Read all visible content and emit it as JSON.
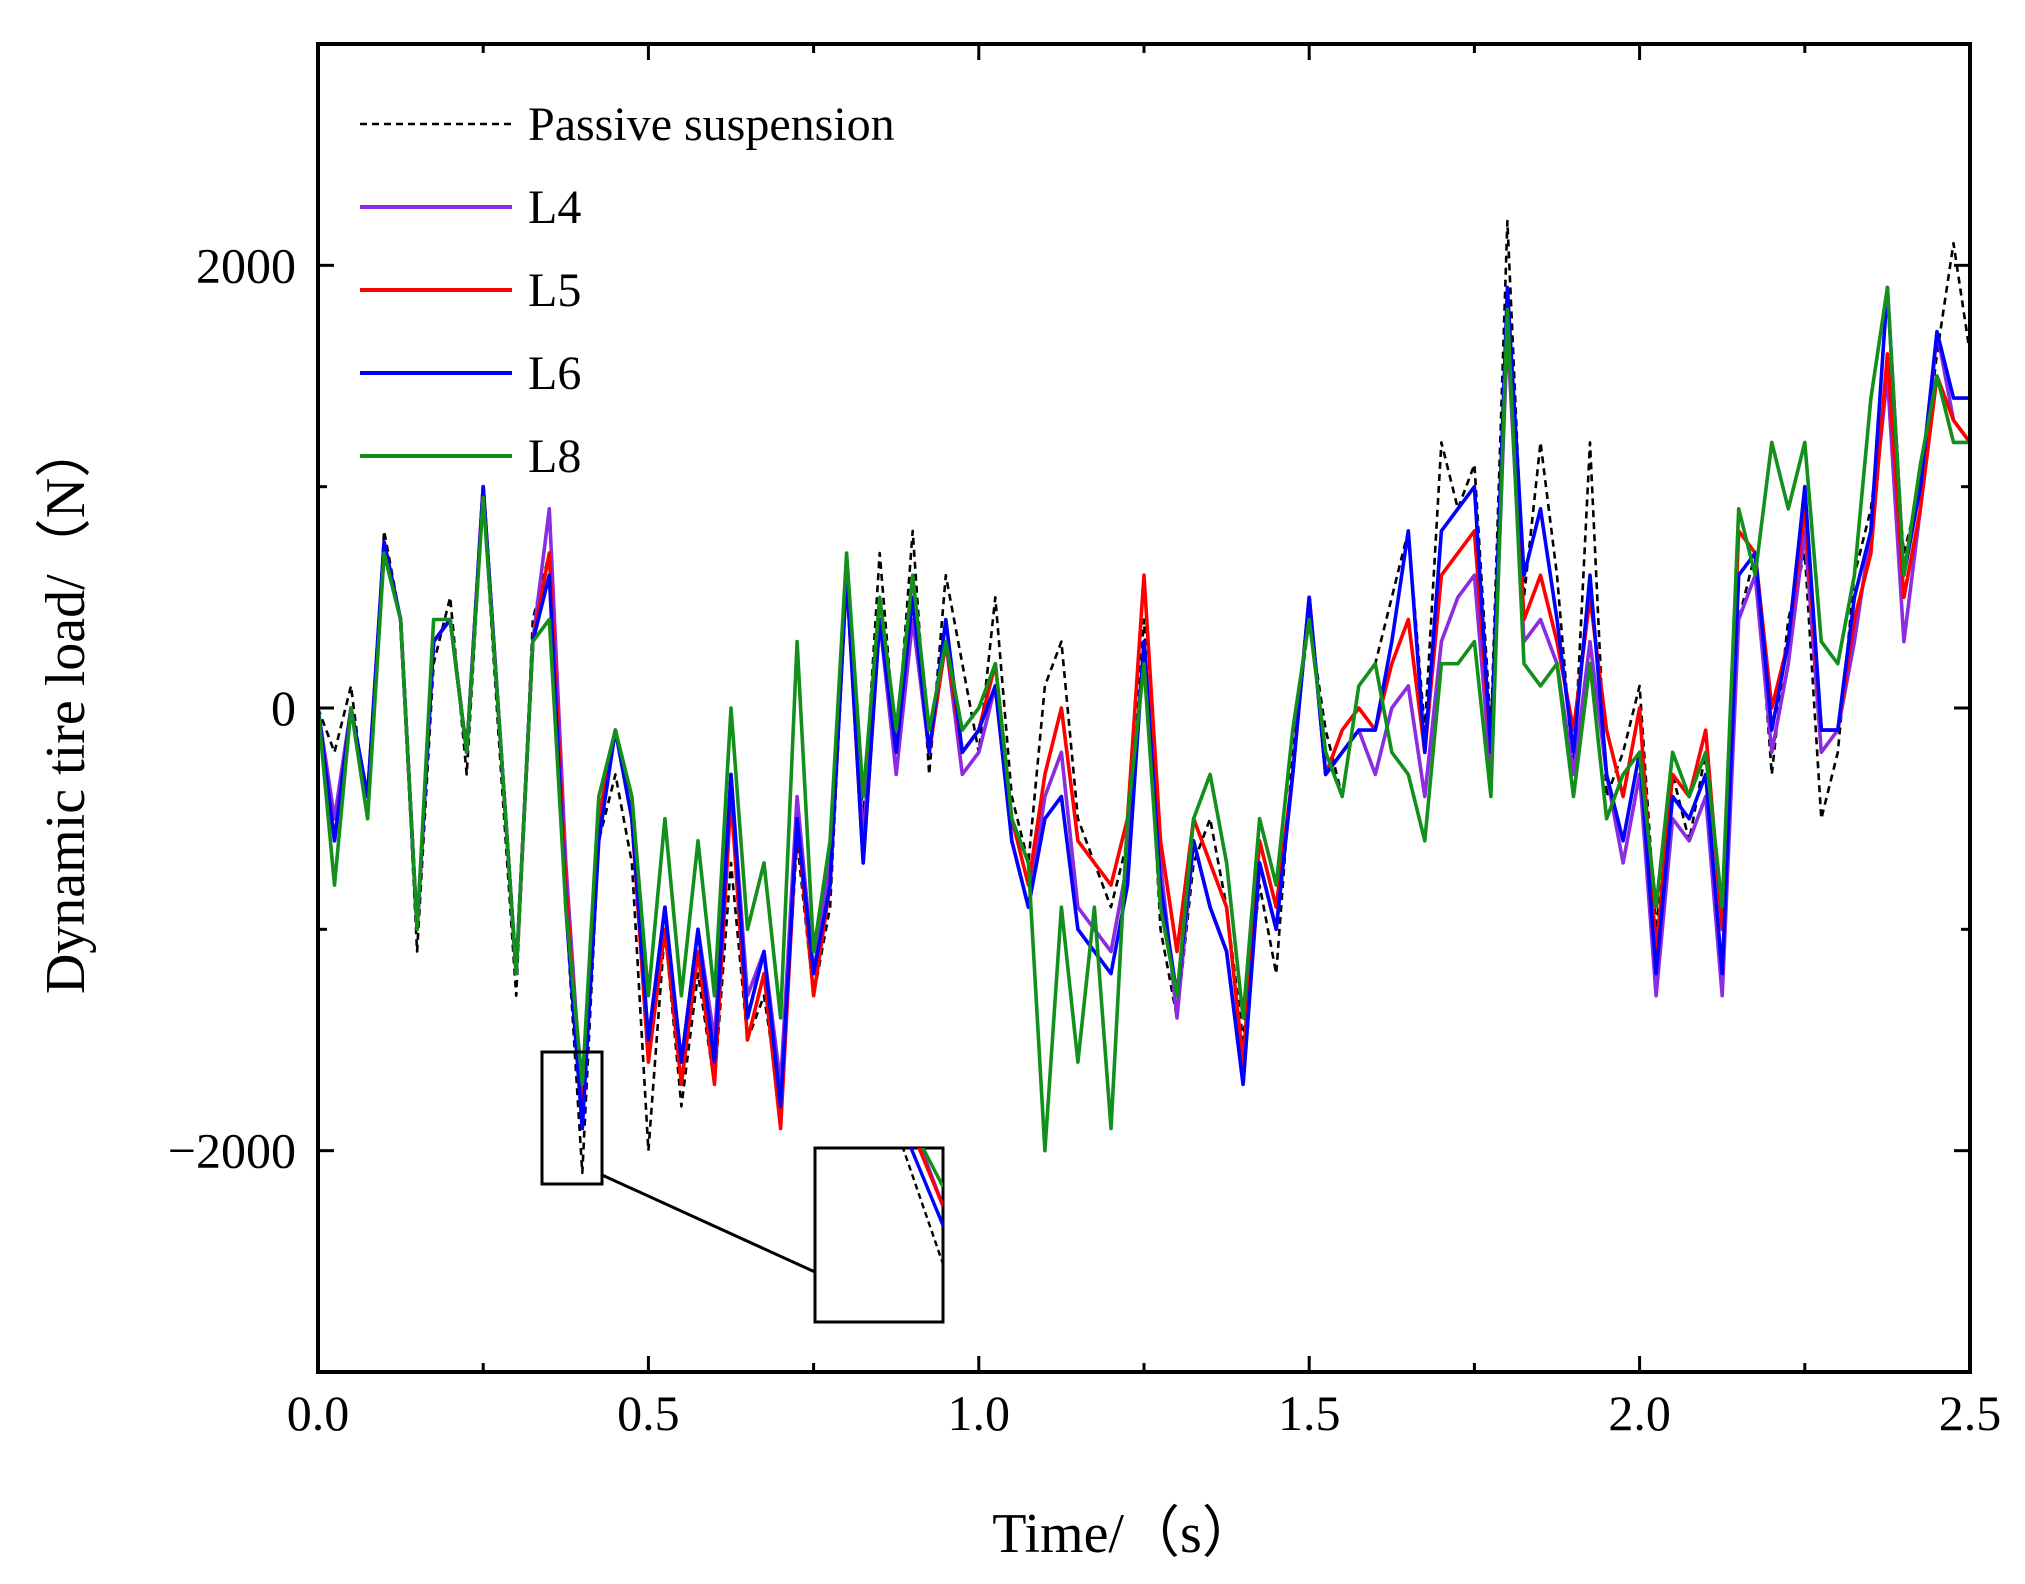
{
  "chart_data": {
    "type": "line",
    "title": "",
    "xlabel": "Time/（s）",
    "ylabel": "Dynamic tire load/（N）",
    "xlim": [
      0,
      2.5
    ],
    "ylim": [
      -3000,
      3000
    ],
    "xticks": [
      "0.0",
      "0.5",
      "1.0",
      "1.5",
      "2.0",
      "2.5"
    ],
    "yticks": [
      "−2000",
      "0",
      "2000"
    ],
    "grid": false,
    "legend_position": "top-left",
    "x": [
      0.0,
      0.025,
      0.05,
      0.075,
      0.1,
      0.125,
      0.15,
      0.175,
      0.2,
      0.225,
      0.25,
      0.275,
      0.3,
      0.325,
      0.35,
      0.375,
      0.4,
      0.425,
      0.45,
      0.475,
      0.5,
      0.525,
      0.55,
      0.575,
      0.6,
      0.625,
      0.65,
      0.675,
      0.7,
      0.725,
      0.75,
      0.775,
      0.8,
      0.825,
      0.85,
      0.875,
      0.9,
      0.925,
      0.95,
      0.975,
      1.0,
      1.025,
      1.05,
      1.075,
      1.1,
      1.125,
      1.15,
      1.175,
      1.2,
      1.225,
      1.25,
      1.275,
      1.3,
      1.325,
      1.35,
      1.375,
      1.4,
      1.425,
      1.45,
      1.475,
      1.5,
      1.525,
      1.55,
      1.575,
      1.6,
      1.625,
      1.65,
      1.675,
      1.7,
      1.725,
      1.75,
      1.775,
      1.8,
      1.825,
      1.85,
      1.875,
      1.9,
      1.925,
      1.95,
      1.975,
      2.0,
      2.025,
      2.05,
      2.075,
      2.1,
      2.125,
      2.15,
      2.175,
      2.2,
      2.225,
      2.25,
      2.275,
      2.3,
      2.325,
      2.35,
      2.375,
      2.4,
      2.425,
      2.45,
      2.475,
      2.5
    ],
    "series": [
      {
        "name": "Passive suspension",
        "color": "#000000",
        "dash": true,
        "values": [
          0,
          -200,
          100,
          -500,
          800,
          400,
          -1100,
          200,
          500,
          -300,
          950,
          -200,
          -1300,
          400,
          700,
          -900,
          -2100,
          -600,
          -300,
          -700,
          -2000,
          -1000,
          -1800,
          -1200,
          -1700,
          -700,
          -1500,
          -1300,
          -1800,
          -600,
          -1300,
          -900,
          600,
          -500,
          700,
          -200,
          800,
          -300,
          600,
          200,
          -200,
          500,
          -400,
          -700,
          100,
          300,
          -500,
          -700,
          -900,
          -600,
          400,
          -1000,
          -1400,
          -700,
          -500,
          -900,
          -1500,
          -800,
          -1200,
          -200,
          400,
          -100,
          -400,
          100,
          200,
          500,
          800,
          -100,
          1200,
          900,
          1100,
          -100,
          2200,
          500,
          1200,
          600,
          -300,
          1200,
          -400,
          -200,
          100,
          -1000,
          -300,
          -600,
          -200,
          -1300,
          400,
          700,
          -300,
          400,
          700,
          -500,
          -200,
          600,
          900,
          1500,
          700,
          1000,
          1600,
          2100,
          1600
        ]
      },
      {
        "name": "L4",
        "color": "#8B2BE2",
        "dash": false,
        "values": [
          0,
          -500,
          0,
          -400,
          700,
          400,
          -1000,
          300,
          400,
          -200,
          1000,
          -100,
          -1200,
          300,
          900,
          -700,
          -1800,
          -500,
          -100,
          -500,
          -1500,
          -900,
          -1600,
          -1000,
          -1500,
          -300,
          -1300,
          -1100,
          -1700,
          -400,
          -1200,
          -700,
          600,
          -600,
          400,
          -300,
          400,
          -200,
          300,
          -300,
          -200,
          100,
          -600,
          -900,
          -400,
          -200,
          -900,
          -1000,
          -1100,
          -700,
          300,
          -700,
          -1400,
          -600,
          -900,
          -1100,
          -1700,
          -700,
          -1000,
          -300,
          500,
          -300,
          -200,
          -100,
          -300,
          0,
          100,
          -400,
          300,
          500,
          600,
          -300,
          1700,
          300,
          400,
          200,
          -300,
          300,
          -300,
          -700,
          -300,
          -1300,
          -500,
          -600,
          -400,
          -1300,
          400,
          600,
          -200,
          200,
          800,
          -200,
          -100,
          300,
          800,
          1500,
          300,
          900,
          1700,
          1300,
          1200
        ]
      },
      {
        "name": "L5",
        "color": "#FF0000",
        "dash": false,
        "values": [
          0,
          -600,
          0,
          -400,
          750,
          400,
          -1000,
          300,
          400,
          -200,
          1000,
          -100,
          -1200,
          300,
          700,
          -800,
          -1800,
          -500,
          -100,
          -500,
          -1600,
          -1000,
          -1700,
          -1100,
          -1700,
          -400,
          -1500,
          -1200,
          -1900,
          -500,
          -1300,
          -800,
          600,
          -700,
          400,
          -200,
          500,
          -200,
          300,
          -200,
          -100,
          200,
          -500,
          -800,
          -300,
          0,
          -600,
          -700,
          -800,
          -500,
          600,
          -600,
          -1100,
          -500,
          -700,
          -900,
          -1600,
          -600,
          -900,
          -300,
          500,
          -300,
          -100,
          0,
          -100,
          200,
          400,
          -200,
          600,
          700,
          800,
          -200,
          1800,
          400,
          600,
          300,
          -100,
          500,
          -100,
          -400,
          0,
          -1100,
          -300,
          -400,
          -100,
          -1000,
          800,
          700,
          0,
          300,
          900,
          -100,
          -100,
          400,
          700,
          1600,
          500,
          900,
          1500,
          1300,
          1200
        ]
      },
      {
        "name": "L6",
        "color": "#0000FF",
        "dash": false,
        "values": [
          0,
          -600,
          0,
          -400,
          750,
          400,
          -1000,
          300,
          400,
          -200,
          1000,
          -100,
          -1200,
          300,
          600,
          -900,
          -1900,
          -600,
          -100,
          -500,
          -1500,
          -900,
          -1600,
          -1000,
          -1600,
          -300,
          -1400,
          -1100,
          -1800,
          -500,
          -1200,
          -800,
          600,
          -700,
          400,
          -200,
          500,
          -200,
          400,
          -200,
          -100,
          100,
          -600,
          -900,
          -500,
          -400,
          -1000,
          -1100,
          -1200,
          -800,
          300,
          -800,
          -1300,
          -600,
          -900,
          -1100,
          -1700,
          -700,
          -1000,
          -300,
          500,
          -300,
          -200,
          -100,
          -100,
          300,
          800,
          -200,
          800,
          900,
          1000,
          -200,
          1900,
          600,
          900,
          400,
          -200,
          600,
          -300,
          -600,
          -200,
          -1200,
          -400,
          -500,
          -300,
          -1200,
          600,
          700,
          -100,
          300,
          1000,
          -100,
          -100,
          500,
          800,
          1900,
          600,
          1000,
          1700,
          1400,
          1400
        ]
      },
      {
        "name": "L8",
        "color": "#138F1B",
        "dash": false,
        "values": [
          0,
          -800,
          0,
          -500,
          700,
          400,
          -1000,
          400,
          400,
          -200,
          950,
          -100,
          -1200,
          300,
          400,
          -900,
          -1700,
          -400,
          -100,
          -400,
          -1300,
          -500,
          -1300,
          -600,
          -1300,
          0,
          -1000,
          -700,
          -1400,
          300,
          -1100,
          -600,
          700,
          -400,
          500,
          -100,
          600,
          -100,
          300,
          -100,
          0,
          200,
          -500,
          -700,
          -2000,
          -900,
          -1600,
          -900,
          -1900,
          -500,
          200,
          -900,
          -1300,
          -500,
          -300,
          -700,
          -1400,
          -500,
          -800,
          -100,
          400,
          -200,
          -400,
          100,
          200,
          -200,
          -300,
          -600,
          200,
          200,
          300,
          -400,
          1800,
          200,
          100,
          200,
          -400,
          200,
          -500,
          -300,
          -200,
          -900,
          -200,
          -400,
          -200,
          -900,
          900,
          600,
          1200,
          900,
          1200,
          300,
          200,
          600,
          1400,
          1900,
          600,
          1100,
          1500,
          1200,
          1200
        ]
      }
    ]
  }
}
